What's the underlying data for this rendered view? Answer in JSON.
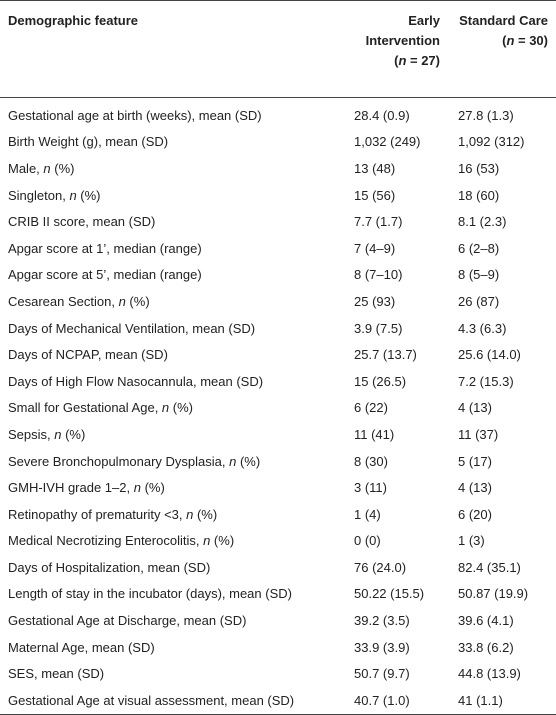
{
  "table": {
    "header": [
      {
        "label": "Demographic feature"
      },
      {
        "label": "Early Intervention",
        "n": "(n = 27)"
      },
      {
        "label": "Standard Care",
        "n": "(n = 30)"
      }
    ],
    "rows": [
      [
        "Gestational age at birth (weeks), mean (SD)",
        "28.4 (0.9)",
        "27.8 (1.3)"
      ],
      [
        "Birth Weight (g), mean (SD)",
        "1,032 (249)",
        "1,092 (312)"
      ],
      [
        "Male, n (%)",
        "13 (48)",
        "16 (53)"
      ],
      [
        "Singleton, n (%)",
        "15 (56)",
        "18 (60)"
      ],
      [
        "CRIB II score, mean (SD)",
        "7.7 (1.7)",
        "8.1 (2.3)"
      ],
      [
        "Apgar score at 1’, median (range)",
        "7 (4–9)",
        "6 (2–8)"
      ],
      [
        "Apgar score at 5’, median (range)",
        "8 (7–10)",
        "8 (5–9)"
      ],
      [
        "Cesarean Section, n (%)",
        "25 (93)",
        "26 (87)"
      ],
      [
        "Days of Mechanical Ventilation, mean (SD)",
        "3.9 (7.5)",
        "4.3 (6.3)"
      ],
      [
        "Days of NCPAP, mean (SD)",
        "25.7 (13.7)",
        "25.6 (14.0)"
      ],
      [
        "Days of High Flow Nasocannula, mean (SD)",
        "15 (26.5)",
        "7.2 (15.3)"
      ],
      [
        "Small for Gestational Age, n (%)",
        "6 (22)",
        "4 (13)"
      ],
      [
        "Sepsis, n (%)",
        "11 (41)",
        "11 (37)"
      ],
      [
        "Severe Bronchopulmonary Dysplasia, n (%)",
        "8 (30)",
        "5 (17)"
      ],
      [
        "GMH-IVH grade 1–2, n (%)",
        "3 (11)",
        "4 (13)"
      ],
      [
        "Retinopathy of prematurity <3, n (%)",
        "1 (4)",
        "6 (20)"
      ],
      [
        "Medical Necrotizing Enterocolitis, n (%)",
        "0 (0)",
        "1 (3)"
      ],
      [
        "Days of Hospitalization, mean (SD)",
        "76 (24.0)",
        "82.4 (35.1)"
      ],
      [
        "Length of stay in the incubator (days), mean (SD)",
        "50.22 (15.5)",
        "50.87 (19.9)"
      ],
      [
        "Gestational Age at Discharge, mean (SD)",
        "39.2 (3.5)",
        "39.6 (4.1)"
      ],
      [
        "Maternal Age, mean (SD)",
        "33.9 (3.9)",
        "33.8 (6.2)"
      ],
      [
        "SES, mean (SD)",
        "50.7 (9.7)",
        "44.8 (13.9)"
      ],
      [
        "Gestational Age at visual assessment, mean (SD)",
        "40.7 (1.0)",
        "41 (1.1)"
      ]
    ]
  }
}
